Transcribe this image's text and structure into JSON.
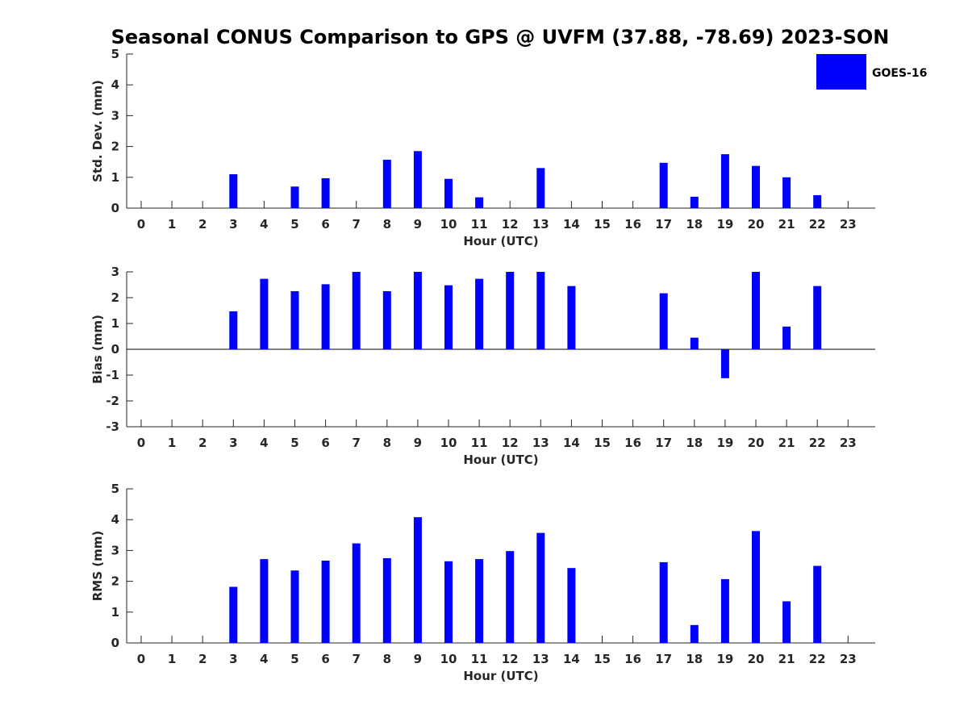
{
  "chart_data": {
    "type": "bar",
    "title": "Seasonal CONUS Comparison to GPS @ UVFM (37.88, -78.69) 2023-SON",
    "legend": {
      "entries": [
        "GOES-16"
      ],
      "placement": "top-right"
    },
    "colors": {
      "bar": "#0000ff",
      "axis": "#262626",
      "baseline": "#000000"
    },
    "categories": [
      "0",
      "1",
      "2",
      "3",
      "4",
      "5",
      "6",
      "7",
      "8",
      "9",
      "10",
      "11",
      "12",
      "13",
      "14",
      "15",
      "16",
      "17",
      "18",
      "19",
      "20",
      "21",
      "22",
      "23"
    ],
    "panels": [
      {
        "id": "std",
        "ylabel": "Std. Dev. (mm)",
        "xlabel": "Hour (UTC)",
        "ylim": [
          0,
          5
        ],
        "yticks": [
          0,
          1,
          2,
          3,
          4,
          5
        ],
        "series": [
          {
            "name": "GOES-16",
            "values": [
              null,
              null,
              null,
              1.1,
              null,
              0.7,
              0.97,
              null,
              1.57,
              1.85,
              0.95,
              0.35,
              null,
              1.3,
              null,
              null,
              null,
              1.47,
              0.37,
              1.75,
              1.37,
              1.0,
              0.42,
              null
            ]
          }
        ]
      },
      {
        "id": "bias",
        "ylabel": "Bias (mm)",
        "xlabel": "Hour (UTC)",
        "ylim": [
          -3,
          3
        ],
        "yticks": [
          -3,
          -2,
          -1,
          0,
          1,
          2,
          3
        ],
        "series": [
          {
            "name": "GOES-16",
            "values": [
              null,
              null,
              null,
              1.47,
              2.73,
              2.25,
              2.52,
              3.0,
              2.25,
              3.0,
              2.48,
              2.73,
              3.0,
              3.0,
              2.45,
              null,
              null,
              2.17,
              0.45,
              -1.12,
              3.0,
              0.88,
              2.45,
              null
            ]
          }
        ]
      },
      {
        "id": "rms",
        "ylabel": "RMS (mm)",
        "xlabel": "Hour (UTC)",
        "ylim": [
          0,
          5
        ],
        "yticks": [
          0,
          1,
          2,
          3,
          4,
          5
        ],
        "series": [
          {
            "name": "GOES-16",
            "values": [
              null,
              null,
              null,
              1.82,
              2.72,
              2.35,
              2.67,
              3.23,
              2.75,
              4.08,
              2.65,
              2.72,
              2.98,
              3.57,
              2.43,
              null,
              null,
              2.62,
              0.58,
              2.07,
              3.63,
              1.35,
              2.5,
              null
            ]
          }
        ]
      }
    ]
  }
}
